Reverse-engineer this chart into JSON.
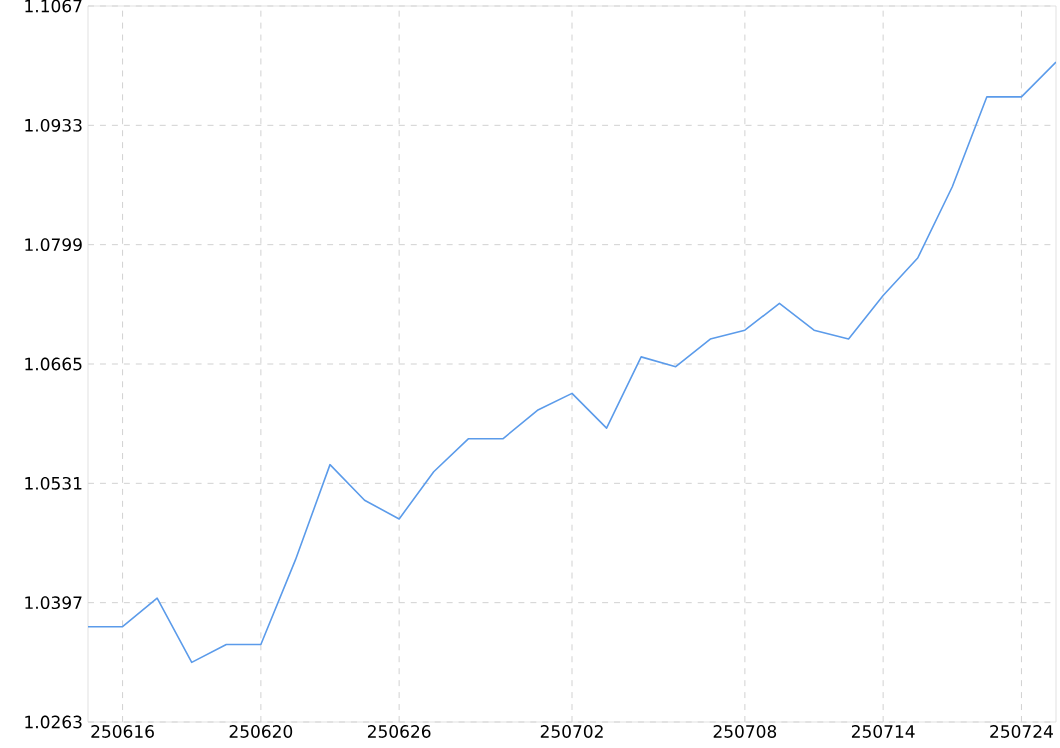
{
  "chart_data": {
    "type": "line",
    "categories": [
      null,
      "250616",
      null,
      null,
      null,
      "250620",
      null,
      null,
      null,
      "250626",
      null,
      null,
      null,
      null,
      "250702",
      null,
      null,
      null,
      null,
      "250708",
      null,
      null,
      null,
      "250714",
      null,
      null,
      null,
      "250724",
      null
    ],
    "series": [
      {
        "color": "#5b9bea",
        "values": [
          1.037,
          1.037,
          1.0402,
          1.033,
          1.035,
          1.035,
          1.0445,
          1.0552,
          1.0512,
          1.0491,
          1.0544,
          1.0581,
          1.0581,
          1.0613,
          1.0632,
          1.0593,
          1.0673,
          1.0662,
          1.0693,
          1.0703,
          1.0733,
          1.0703,
          1.0693,
          1.0742,
          1.0784,
          1.0864,
          1.0965,
          1.0965,
          1.1004
        ]
      }
    ],
    "ylim": [
      1.0263,
      1.1067
    ],
    "yticks": [
      1.0263,
      1.0397,
      1.0531,
      1.0665,
      1.0799,
      1.0933,
      1.1067
    ],
    "grid": true,
    "marker": "none",
    "line_style": "solid"
  }
}
